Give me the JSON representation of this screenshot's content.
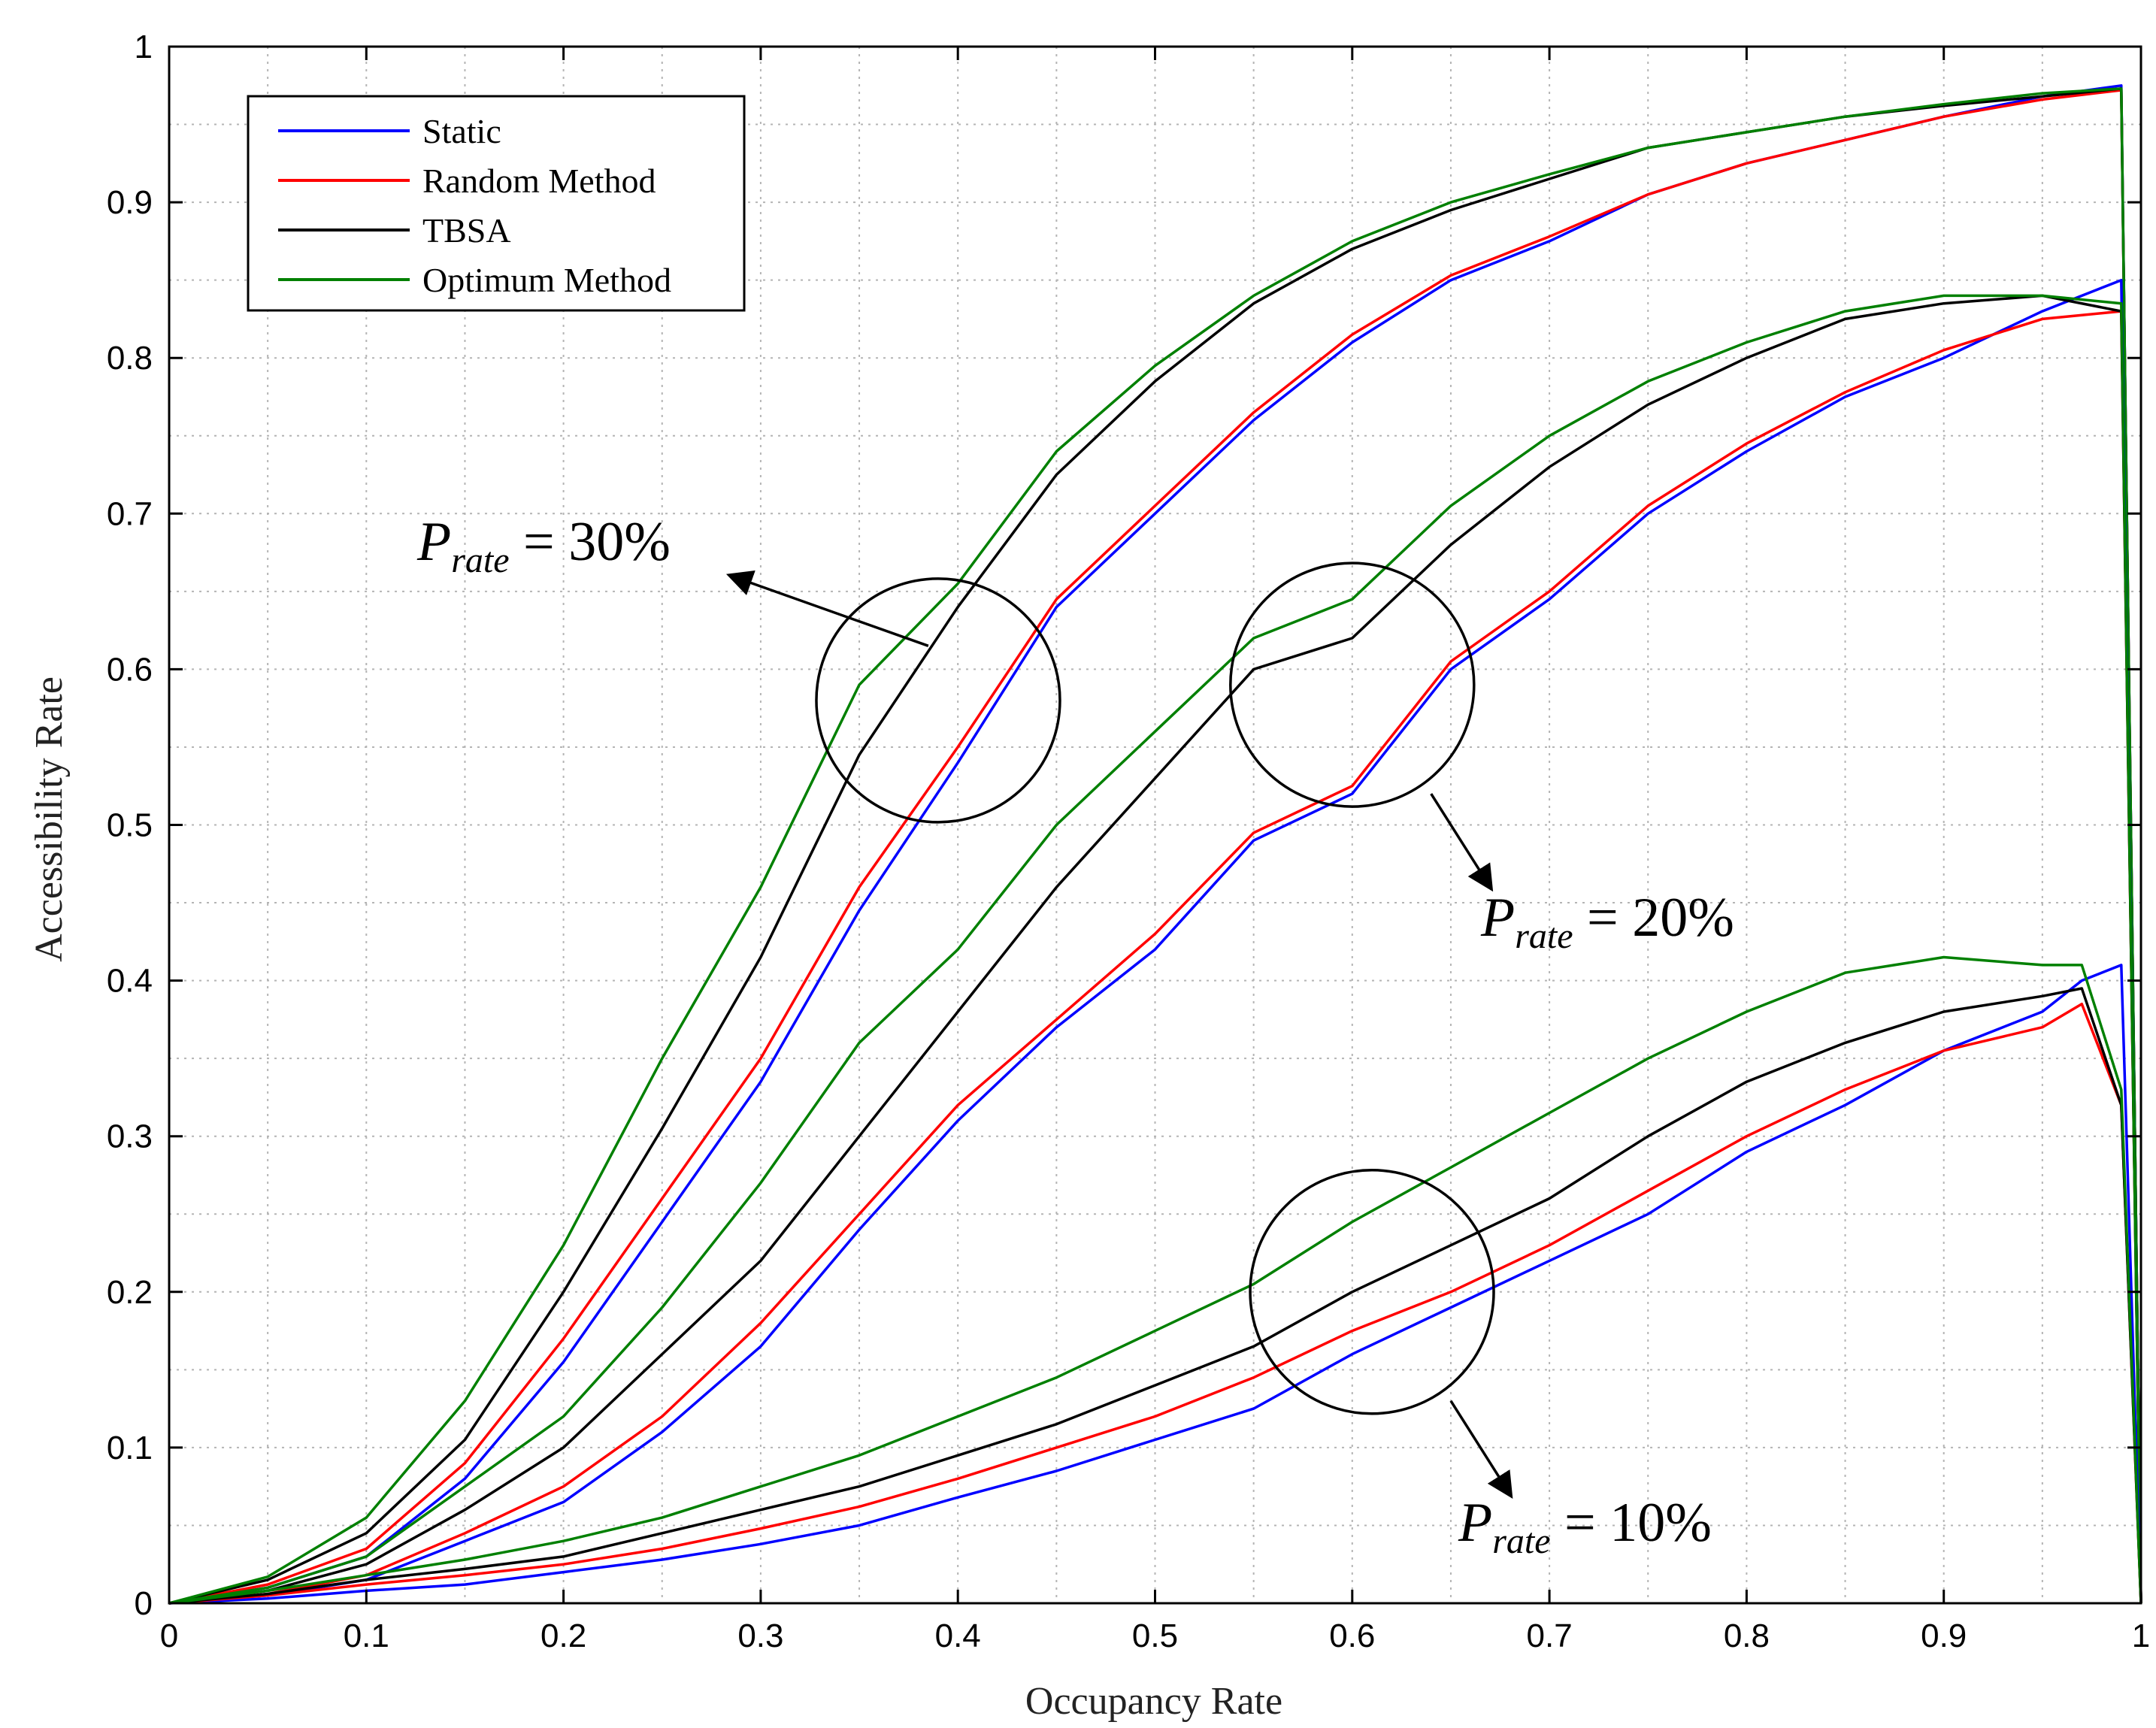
{
  "chart_data": {
    "type": "line",
    "title": "",
    "xlabel": "Occupancy Rate",
    "ylabel": "Accessibility Rate",
    "xlim": [
      0,
      1
    ],
    "ylim": [
      0,
      1
    ],
    "grid": true,
    "xticks": [
      "0",
      "0.1",
      "0.2",
      "0.3",
      "0.4",
      "0.5",
      "0.6",
      "0.7",
      "0.8",
      "0.9",
      "1"
    ],
    "yticks": [
      "0",
      "0.1",
      "0.2",
      "0.3",
      "0.4",
      "0.5",
      "0.6",
      "0.7",
      "0.8",
      "0.9",
      "1"
    ],
    "legend_position": "top-left",
    "legend": [
      {
        "name": "Static",
        "color": "#0000ff"
      },
      {
        "name": "Random Method",
        "color": "#ff0000"
      },
      {
        "name": "TBSA",
        "color": "#000000"
      },
      {
        "name": "Optimum Method",
        "color": "#008000"
      }
    ],
    "groups": [
      {
        "label": "P_rate = 30%",
        "annotation": {
          "main": "P",
          "sub": "rate",
          "rest": " = 30%"
        },
        "circle_center": [
          0.39,
          0.58
        ],
        "series": [
          {
            "name": "Static",
            "color": "#0000ff",
            "x": [
              0,
              0.05,
              0.1,
              0.15,
              0.2,
              0.25,
              0.3,
              0.35,
              0.4,
              0.45,
              0.5,
              0.55,
              0.6,
              0.65,
              0.7,
              0.75,
              0.8,
              0.85,
              0.9,
              0.95,
              0.99,
              1.0
            ],
            "y": [
              0,
              0.01,
              0.03,
              0.08,
              0.155,
              0.245,
              0.335,
              0.445,
              0.54,
              0.64,
              0.7,
              0.76,
              0.81,
              0.85,
              0.875,
              0.905,
              0.925,
              0.94,
              0.955,
              0.968,
              0.975,
              0
            ]
          },
          {
            "name": "Random Method",
            "color": "#ff0000",
            "x": [
              0,
              0.05,
              0.1,
              0.15,
              0.2,
              0.25,
              0.3,
              0.35,
              0.4,
              0.45,
              0.5,
              0.55,
              0.6,
              0.65,
              0.7,
              0.75,
              0.8,
              0.85,
              0.9,
              0.95,
              0.99,
              1.0
            ],
            "y": [
              0,
              0.012,
              0.035,
              0.09,
              0.17,
              0.26,
              0.35,
              0.46,
              0.55,
              0.645,
              0.705,
              0.765,
              0.815,
              0.853,
              0.878,
              0.905,
              0.925,
              0.94,
              0.955,
              0.966,
              0.972,
              0
            ]
          },
          {
            "name": "TBSA",
            "color": "#000000",
            "x": [
              0,
              0.05,
              0.1,
              0.15,
              0.2,
              0.25,
              0.3,
              0.35,
              0.4,
              0.45,
              0.5,
              0.55,
              0.6,
              0.65,
              0.7,
              0.75,
              0.8,
              0.85,
              0.9,
              0.95,
              0.99,
              1.0
            ],
            "y": [
              0,
              0.015,
              0.045,
              0.105,
              0.2,
              0.305,
              0.415,
              0.545,
              0.64,
              0.725,
              0.785,
              0.835,
              0.87,
              0.895,
              0.915,
              0.935,
              0.945,
              0.955,
              0.962,
              0.968,
              0.973,
              0
            ]
          },
          {
            "name": "Optimum Method",
            "color": "#008000",
            "x": [
              0,
              0.05,
              0.1,
              0.15,
              0.2,
              0.25,
              0.3,
              0.35,
              0.4,
              0.45,
              0.5,
              0.55,
              0.6,
              0.65,
              0.7,
              0.75,
              0.8,
              0.85,
              0.9,
              0.95,
              0.99,
              1.0
            ],
            "y": [
              0,
              0.017,
              0.055,
              0.13,
              0.23,
              0.35,
              0.46,
              0.59,
              0.655,
              0.74,
              0.795,
              0.84,
              0.875,
              0.9,
              0.918,
              0.935,
              0.945,
              0.955,
              0.963,
              0.97,
              0.973,
              0
            ]
          }
        ]
      },
      {
        "label": "P_rate = 20%",
        "annotation": {
          "main": "P",
          "sub": "rate",
          "rest": " = 20%"
        },
        "circle_center": [
          0.6,
          0.59
        ],
        "series": [
          {
            "name": "Static",
            "color": "#0000ff",
            "x": [
              0,
              0.05,
              0.1,
              0.15,
              0.2,
              0.25,
              0.3,
              0.35,
              0.4,
              0.45,
              0.5,
              0.55,
              0.6,
              0.65,
              0.7,
              0.75,
              0.8,
              0.85,
              0.9,
              0.95,
              0.99,
              1.0
            ],
            "y": [
              0,
              0.005,
              0.015,
              0.04,
              0.065,
              0.11,
              0.165,
              0.24,
              0.31,
              0.37,
              0.42,
              0.49,
              0.52,
              0.6,
              0.645,
              0.7,
              0.74,
              0.775,
              0.8,
              0.83,
              0.85,
              0
            ]
          },
          {
            "name": "Random Method",
            "color": "#ff0000",
            "x": [
              0,
              0.05,
              0.1,
              0.15,
              0.2,
              0.25,
              0.3,
              0.35,
              0.4,
              0.45,
              0.5,
              0.55,
              0.6,
              0.65,
              0.7,
              0.75,
              0.8,
              0.85,
              0.9,
              0.95,
              0.99,
              1.0
            ],
            "y": [
              0,
              0.006,
              0.018,
              0.045,
              0.075,
              0.12,
              0.18,
              0.25,
              0.32,
              0.375,
              0.43,
              0.495,
              0.525,
              0.605,
              0.65,
              0.705,
              0.745,
              0.778,
              0.805,
              0.825,
              0.83,
              0
            ]
          },
          {
            "name": "TBSA",
            "color": "#000000",
            "x": [
              0,
              0.05,
              0.1,
              0.15,
              0.2,
              0.25,
              0.3,
              0.35,
              0.4,
              0.45,
              0.5,
              0.55,
              0.6,
              0.65,
              0.7,
              0.75,
              0.8,
              0.85,
              0.9,
              0.95,
              0.99,
              1.0
            ],
            "y": [
              0,
              0.008,
              0.025,
              0.06,
              0.1,
              0.16,
              0.22,
              0.3,
              0.38,
              0.46,
              0.53,
              0.6,
              0.62,
              0.68,
              0.73,
              0.77,
              0.8,
              0.825,
              0.835,
              0.84,
              0.83,
              0
            ]
          },
          {
            "name": "Optimum Method",
            "color": "#008000",
            "x": [
              0,
              0.05,
              0.1,
              0.15,
              0.2,
              0.25,
              0.3,
              0.35,
              0.4,
              0.45,
              0.5,
              0.55,
              0.6,
              0.65,
              0.7,
              0.75,
              0.8,
              0.85,
              0.9,
              0.95,
              0.99,
              1.0
            ],
            "y": [
              0,
              0.01,
              0.03,
              0.075,
              0.12,
              0.19,
              0.27,
              0.36,
              0.42,
              0.5,
              0.56,
              0.62,
              0.645,
              0.705,
              0.75,
              0.785,
              0.81,
              0.83,
              0.84,
              0.84,
              0.835,
              0
            ]
          }
        ]
      },
      {
        "label": "P_rate = 10%",
        "annotation": {
          "main": "P",
          "sub": "rate",
          "rest": " = 10%"
        },
        "circle_center": [
          0.61,
          0.2
        ],
        "series": [
          {
            "name": "Static",
            "color": "#0000ff",
            "x": [
              0,
              0.05,
              0.1,
              0.15,
              0.2,
              0.25,
              0.3,
              0.35,
              0.4,
              0.45,
              0.5,
              0.55,
              0.6,
              0.65,
              0.7,
              0.75,
              0.8,
              0.85,
              0.9,
              0.95,
              0.97,
              0.99,
              1.0
            ],
            "y": [
              0,
              0.003,
              0.008,
              0.012,
              0.02,
              0.028,
              0.038,
              0.05,
              0.068,
              0.085,
              0.105,
              0.125,
              0.16,
              0.19,
              0.22,
              0.25,
              0.29,
              0.32,
              0.355,
              0.38,
              0.4,
              0.41,
              0
            ]
          },
          {
            "name": "Random Method",
            "color": "#ff0000",
            "x": [
              0,
              0.05,
              0.1,
              0.15,
              0.2,
              0.25,
              0.3,
              0.35,
              0.4,
              0.45,
              0.5,
              0.55,
              0.6,
              0.65,
              0.7,
              0.75,
              0.8,
              0.85,
              0.9,
              0.95,
              0.97,
              0.99,
              1.0
            ],
            "y": [
              0,
              0.005,
              0.012,
              0.018,
              0.025,
              0.035,
              0.048,
              0.062,
              0.08,
              0.1,
              0.12,
              0.145,
              0.175,
              0.2,
              0.23,
              0.265,
              0.3,
              0.33,
              0.355,
              0.37,
              0.385,
              0.32,
              0
            ]
          },
          {
            "name": "TBSA",
            "color": "#000000",
            "x": [
              0,
              0.05,
              0.1,
              0.15,
              0.2,
              0.25,
              0.3,
              0.35,
              0.4,
              0.45,
              0.5,
              0.55,
              0.6,
              0.65,
              0.7,
              0.75,
              0.8,
              0.85,
              0.9,
              0.95,
              0.97,
              0.99,
              1.0
            ],
            "y": [
              0,
              0.006,
              0.015,
              0.022,
              0.03,
              0.045,
              0.06,
              0.075,
              0.095,
              0.115,
              0.14,
              0.165,
              0.2,
              0.23,
              0.26,
              0.3,
              0.335,
              0.36,
              0.38,
              0.39,
              0.395,
              0.32,
              0
            ]
          },
          {
            "name": "Optimum Method",
            "color": "#008000",
            "x": [
              0,
              0.05,
              0.1,
              0.15,
              0.2,
              0.25,
              0.3,
              0.35,
              0.4,
              0.45,
              0.5,
              0.55,
              0.6,
              0.65,
              0.7,
              0.75,
              0.8,
              0.85,
              0.9,
              0.95,
              0.97,
              0.99,
              1.0
            ],
            "y": [
              0,
              0.008,
              0.018,
              0.028,
              0.04,
              0.055,
              0.075,
              0.095,
              0.12,
              0.145,
              0.175,
              0.205,
              0.245,
              0.28,
              0.315,
              0.35,
              0.38,
              0.405,
              0.415,
              0.41,
              0.41,
              0.33,
              0
            ]
          }
        ]
      }
    ]
  }
}
